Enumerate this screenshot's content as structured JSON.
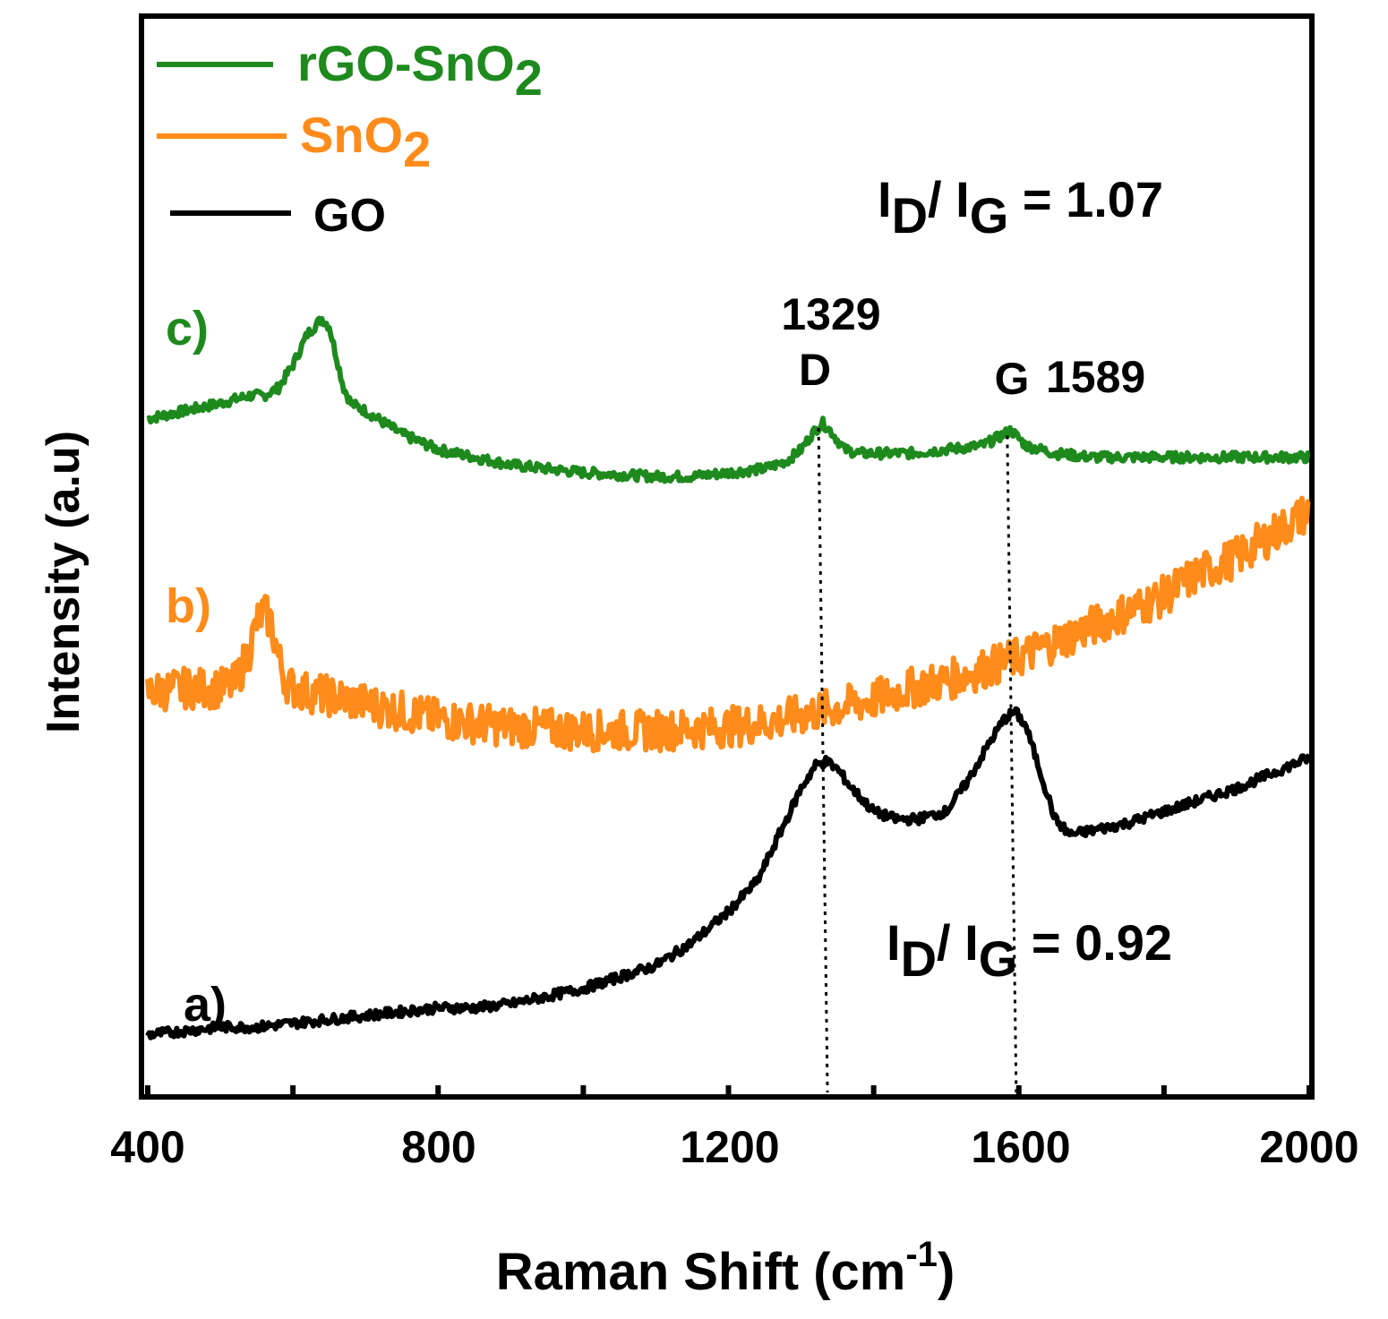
{
  "chart_data": {
    "type": "line",
    "title": "",
    "xlabel": "Raman Shift (cm",
    "xlabel_sup": "-1",
    "xlabel_end": ")",
    "ylabel": "Intensity (a.u)",
    "xlim": [
      400,
      2000
    ],
    "xticks": [
      "400",
      "800",
      "1200",
      "1600",
      "2000"
    ],
    "minor_xticks": [
      600,
      1000,
      1400,
      1800
    ],
    "y_tick_labels": false,
    "legend_position": "top-left",
    "series": [
      {
        "name": "rGO-SnO",
        "name_sub": "2",
        "label": "c)",
        "color": "#1e8a1e",
        "x": [
          400,
          450,
          500,
          540,
          560,
          580,
          600,
          620,
          640,
          650,
          660,
          670,
          680,
          700,
          750,
          800,
          900,
          1000,
          1100,
          1150,
          1200,
          1250,
          1280,
          1300,
          1315,
          1329,
          1340,
          1360,
          1380,
          1400,
          1450,
          1500,
          1550,
          1570,
          1589,
          1610,
          1650,
          1700,
          1800,
          1900,
          2000
        ],
        "y": [
          0.84,
          0.85,
          0.86,
          0.87,
          0.87,
          0.88,
          0.91,
          0.95,
          0.97,
          0.96,
          0.92,
          0.88,
          0.86,
          0.85,
          0.82,
          0.8,
          0.78,
          0.77,
          0.765,
          0.765,
          0.77,
          0.775,
          0.785,
          0.8,
          0.82,
          0.835,
          0.825,
          0.8,
          0.795,
          0.795,
          0.795,
          0.8,
          0.805,
          0.815,
          0.825,
          0.805,
          0.795,
          0.79,
          0.79,
          0.79,
          0.79
        ],
        "noise": 0.004
      },
      {
        "name": "SnO",
        "name_sub": "2",
        "label": "b)",
        "color": "#ff8c1a",
        "x": [
          400,
          450,
          500,
          520,
          540,
          550,
          560,
          570,
          580,
          590,
          600,
          620,
          650,
          700,
          750,
          800,
          900,
          1000,
          1100,
          1200,
          1250,
          1300,
          1350,
          1400,
          1450,
          1500,
          1550,
          1600,
          1650,
          1700,
          1750,
          1800,
          1850,
          1900,
          1950,
          2000
        ],
        "y": [
          0.485,
          0.49,
          0.49,
          0.495,
          0.54,
          0.575,
          0.59,
          0.575,
          0.53,
          0.5,
          0.49,
          0.485,
          0.48,
          0.47,
          0.46,
          0.45,
          0.44,
          0.435,
          0.435,
          0.44,
          0.445,
          0.455,
          0.465,
          0.475,
          0.49,
          0.5,
          0.515,
          0.53,
          0.55,
          0.57,
          0.59,
          0.61,
          0.64,
          0.66,
          0.69,
          0.72
        ],
        "noise": 0.012
      },
      {
        "name": "GO",
        "name_sub": "",
        "label": "a)",
        "color": "#000000",
        "x": [
          400,
          450,
          500,
          550,
          600,
          650,
          700,
          750,
          800,
          850,
          900,
          950,
          1000,
          1050,
          1100,
          1150,
          1200,
          1240,
          1270,
          1300,
          1320,
          1335,
          1350,
          1370,
          1400,
          1430,
          1460,
          1500,
          1530,
          1560,
          1580,
          1595,
          1610,
          1630,
          1650,
          1670,
          1700,
          1750,
          1800,
          1850,
          1900,
          1950,
          2000
        ],
        "y": [
          0.04,
          0.045,
          0.05,
          0.05,
          0.055,
          0.06,
          0.065,
          0.07,
          0.075,
          0.075,
          0.08,
          0.09,
          0.1,
          0.115,
          0.13,
          0.16,
          0.2,
          0.24,
          0.3,
          0.36,
          0.39,
          0.395,
          0.385,
          0.36,
          0.33,
          0.32,
          0.32,
          0.33,
          0.37,
          0.42,
          0.45,
          0.46,
          0.44,
          0.38,
          0.32,
          0.3,
          0.305,
          0.315,
          0.33,
          0.345,
          0.36,
          0.38,
          0.4
        ],
        "noise": 0.004
      }
    ],
    "peak_markers": [
      {
        "label": "D",
        "x": 1329,
        "value": "1329"
      },
      {
        "label": "G",
        "x": 1589,
        "value": "1589"
      }
    ],
    "annotations": [
      {
        "text_i": "I",
        "sub1": "D",
        "slash": "/ I",
        "sub2": "G",
        "rest": " = 1.07"
      },
      {
        "text_i": "I",
        "sub1": "D",
        "slash": "/ I",
        "sub2": "G",
        "rest": " = 0.92"
      }
    ]
  }
}
